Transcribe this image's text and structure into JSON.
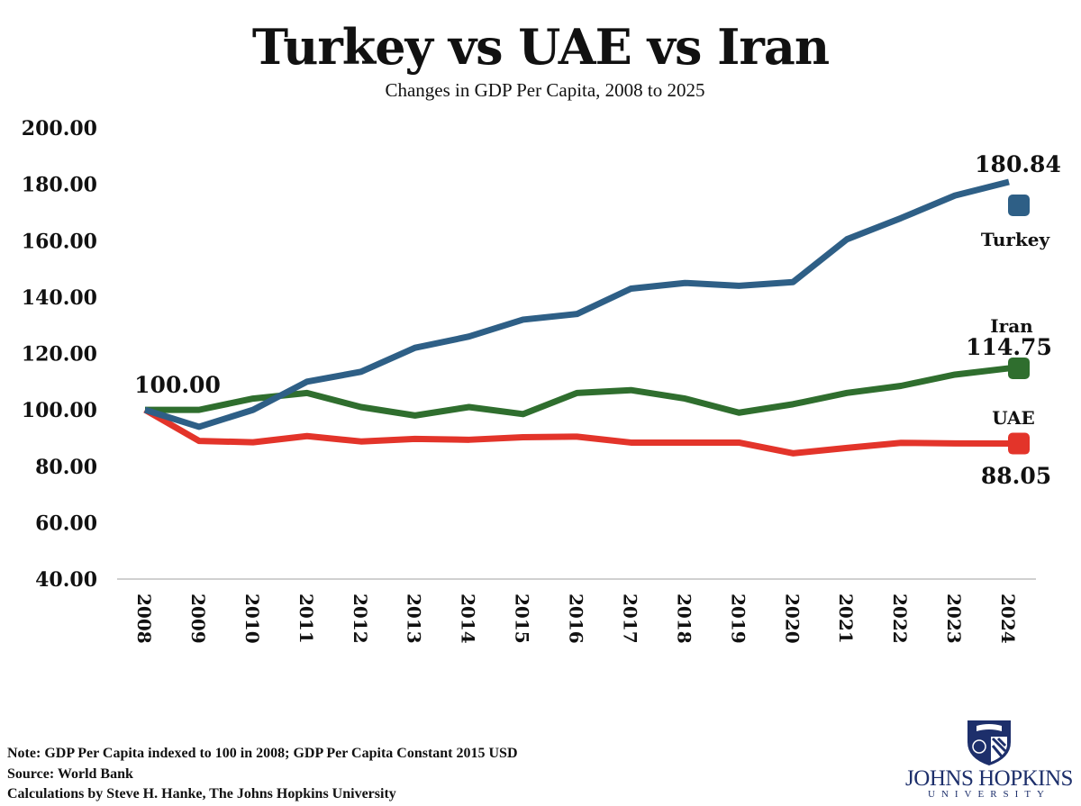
{
  "chart_data": {
    "type": "line",
    "title": "Turkey vs UAE vs Iran",
    "subtitle": "Changes in GDP Per Capita, 2008 to 2025",
    "x": [
      "2008",
      "2009",
      "2010",
      "2011",
      "2012",
      "2013",
      "2014",
      "2015",
      "2016",
      "2017",
      "2018",
      "2019",
      "2020",
      "2021",
      "2022",
      "2023",
      "2024"
    ],
    "ylim": [
      40,
      200
    ],
    "yticks": [
      "40.00",
      "60.00",
      "80.00",
      "100.00",
      "120.00",
      "140.00",
      "160.00",
      "180.00",
      "200.00"
    ],
    "grid": false,
    "series": [
      {
        "name": "Turkey",
        "color": "#2e5f86",
        "end_label": "180.84",
        "values": [
          100,
          94,
          100,
          110,
          113.5,
          122,
          126,
          132,
          134,
          143,
          145,
          144,
          145.3,
          160.5,
          168,
          176,
          180.84
        ]
      },
      {
        "name": "Iran",
        "color": "#2f6e2e",
        "end_label": "114.75",
        "values": [
          100,
          100,
          104,
          106,
          101,
          98,
          101,
          98.5,
          106,
          107,
          104,
          99,
          102,
          106,
          108.5,
          112.5,
          114.75
        ]
      },
      {
        "name": "UAE",
        "color": "#e3342a",
        "end_label": "88.05",
        "values": [
          100,
          89,
          88.5,
          90.7,
          88.8,
          89.7,
          89.4,
          90.3,
          90.5,
          88.4,
          88.4,
          88.4,
          84.6,
          86.5,
          88.3,
          88.1,
          88.05
        ]
      }
    ],
    "start_label": "100.00"
  },
  "footer": {
    "note": "Note: GDP Per Capita indexed to 100 in 2008; GDP Per Capita Constant 2015 USD",
    "source": "Source: World Bank",
    "credit": "Calculations by Steve H. Hanke, The Johns Hopkins University"
  },
  "logo": {
    "line1": "JOHNS HOPKINS",
    "line2": "UNIVERSITY"
  }
}
